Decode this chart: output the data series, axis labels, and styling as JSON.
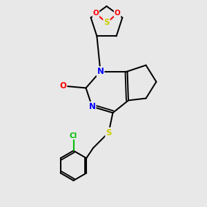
{
  "bg_color": "#e8e8e8",
  "atom_colors": {
    "S": "#cccc00",
    "N": "#0000ff",
    "O": "#ff0000",
    "C": "#000000",
    "Cl": "#00bb00"
  },
  "bond_color": "#000000",
  "bond_width": 1.5,
  "font_size_atom": 8.5
}
